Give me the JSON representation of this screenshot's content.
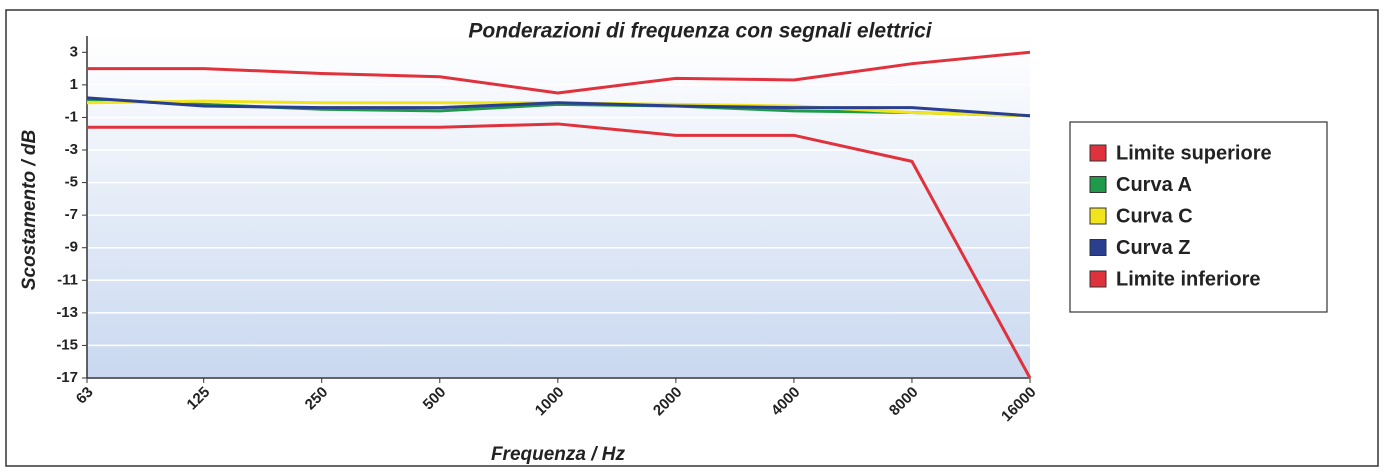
{
  "chart_data": {
    "type": "line",
    "title": "Ponderazioni di frequenza con segnali elettrici",
    "x_label": "Frequenza / Hz",
    "y_label": "Scostamento / dB",
    "x": [
      63,
      125,
      250,
      500,
      1000,
      2000,
      4000,
      8000,
      16000
    ],
    "xscale": "log",
    "xlim": [
      63,
      16000
    ],
    "xticks": [
      63,
      125,
      250,
      500,
      1000,
      2000,
      4000,
      8000,
      16000
    ],
    "ylim": [
      -17,
      4
    ],
    "yticks": [
      3,
      1,
      -1,
      -3,
      -5,
      -7,
      -9,
      -11,
      -13,
      -15,
      -17
    ],
    "grid": true,
    "legend": "right",
    "series": [
      {
        "name": "Limite superiore",
        "color": "#e0323c",
        "values": [
          2.0,
          2.0,
          1.7,
          1.5,
          0.5,
          1.4,
          1.3,
          2.3,
          3.0
        ]
      },
      {
        "name": "Curva A",
        "color": "#1f9a4a",
        "values": [
          0.1,
          -0.2,
          -0.5,
          -0.6,
          -0.2,
          -0.3,
          -0.6,
          -0.7,
          -0.9
        ]
      },
      {
        "name": "Curva C",
        "color": "#f2e41c",
        "values": [
          -0.1,
          0.0,
          -0.1,
          -0.1,
          -0.1,
          -0.2,
          -0.3,
          -0.7,
          -0.9
        ]
      },
      {
        "name": "Curva Z",
        "color": "#2a3f8f",
        "values": [
          0.2,
          -0.3,
          -0.4,
          -0.4,
          -0.1,
          -0.3,
          -0.4,
          -0.4,
          -0.9
        ]
      },
      {
        "name": "Limite inferiore",
        "color": "#e0323c",
        "values": [
          -1.6,
          -1.6,
          -1.6,
          -1.6,
          -1.4,
          -2.1,
          -2.1,
          -3.7,
          -17
        ]
      }
    ]
  }
}
